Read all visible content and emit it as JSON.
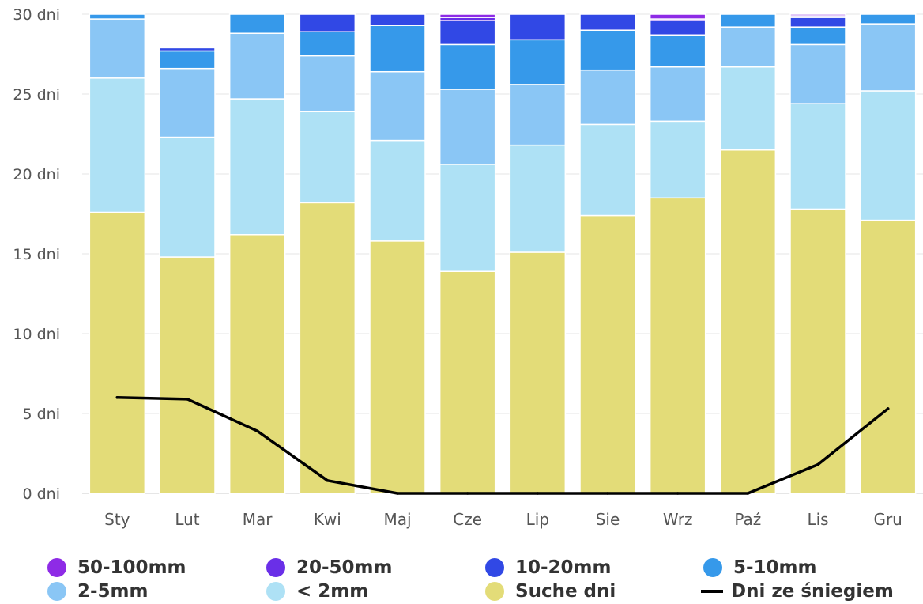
{
  "chart_data": {
    "type": "bar",
    "stacked": true,
    "categories": [
      "Sty",
      "Lut",
      "Mar",
      "Kwi",
      "Maj",
      "Cze",
      "Lip",
      "Sie",
      "Wrz",
      "Paź",
      "Lis",
      "Gru"
    ],
    "y_ticks": [
      "0 dni",
      "5 dni",
      "10 dni",
      "15 dni",
      "20 dni",
      "25 dni",
      "30 dni"
    ],
    "ylim": [
      0,
      30
    ],
    "grid": true,
    "legend_position": "bottom",
    "series": [
      {
        "name": "Suche dni",
        "color": "#e3dc78",
        "values": [
          17.6,
          14.8,
          16.2,
          18.2,
          15.8,
          13.9,
          15.1,
          17.4,
          18.5,
          21.5,
          17.8,
          17.1
        ]
      },
      {
        "name": "< 2mm",
        "color": "#aee1f5",
        "values": [
          8.4,
          7.5,
          8.5,
          5.7,
          6.3,
          6.7,
          6.7,
          5.7,
          4.8,
          5.2,
          6.6,
          8.1
        ]
      },
      {
        "name": "2-5mm",
        "color": "#8ac6f5",
        "values": [
          3.7,
          4.3,
          4.1,
          3.5,
          4.3,
          4.7,
          3.8,
          3.4,
          3.4,
          2.5,
          3.7,
          4.2
        ]
      },
      {
        "name": "5-10mm",
        "color": "#3699ea",
        "values": [
          0.3,
          1.1,
          1.2,
          1.5,
          2.9,
          2.8,
          2.8,
          2.5,
          2.0,
          0.9,
          1.1,
          0.6
        ]
      },
      {
        "name": "10-20mm",
        "color": "#3148e5",
        "values": [
          0.0,
          0.2,
          0.0,
          1.1,
          0.7,
          1.5,
          1.6,
          1.1,
          0.9,
          0.0,
          0.6,
          0.0
        ]
      },
      {
        "name": "20-50mm",
        "color": "#6a2fe8",
        "values": [
          0.0,
          0.0,
          0.0,
          0.0,
          0.0,
          0.2,
          0.0,
          0.0,
          0.1,
          0.0,
          0.1,
          0.0
        ]
      },
      {
        "name": "50-100mm",
        "color": "#8e2be6",
        "values": [
          0.0,
          0.0,
          0.0,
          0.0,
          0.0,
          0.2,
          0.0,
          0.0,
          0.3,
          0.0,
          0.1,
          0.0
        ]
      }
    ],
    "line_series": {
      "name": "Dni ze śniegiem",
      "color": "#000000",
      "values": [
        6.0,
        5.9,
        3.9,
        0.8,
        0.0,
        0.0,
        0.0,
        0.0,
        0.0,
        0.0,
        1.8,
        5.3
      ]
    }
  },
  "legend": [
    {
      "label": "50-100mm",
      "color": "#8e2be6",
      "shape": "circle"
    },
    {
      "label": "20-50mm",
      "color": "#6a2fe8",
      "shape": "circle"
    },
    {
      "label": "10-20mm",
      "color": "#3148e5",
      "shape": "circle"
    },
    {
      "label": "5-10mm",
      "color": "#3699ea",
      "shape": "circle"
    },
    {
      "label": "2-5mm",
      "color": "#8ac6f5",
      "shape": "circle"
    },
    {
      "label": "< 2mm",
      "color": "#aee1f5",
      "shape": "circle"
    },
    {
      "label": "Suche dni",
      "color": "#e3dc78",
      "shape": "circle"
    },
    {
      "label": "Dni ze śniegiem",
      "color": "#000000",
      "shape": "line"
    }
  ]
}
